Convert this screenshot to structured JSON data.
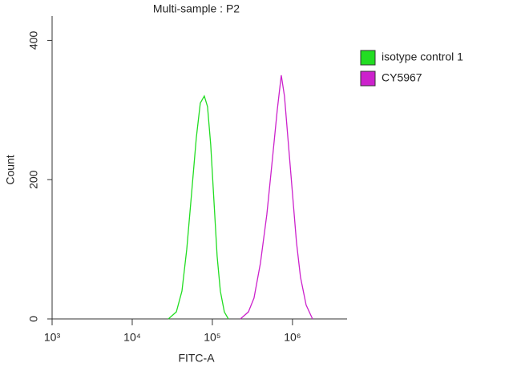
{
  "chart_data": {
    "type": "line",
    "title": "Multi-sample : P2",
    "x_label": "FITC-A",
    "y_label": "Count",
    "log_x": true,
    "xlim": [
      1000,
      4800000
    ],
    "ylim": [
      0,
      435
    ],
    "xticks": [
      {
        "value": 1000,
        "label": "10³"
      },
      {
        "value": 10000,
        "label": "10⁴"
      },
      {
        "value": 100000,
        "label": "10⁵"
      },
      {
        "value": 1000000,
        "label": "10⁶"
      }
    ],
    "yticks": [
      0,
      200,
      400
    ],
    "legend": "right",
    "series": [
      {
        "name": "isotype control 1",
        "color": "#22dd22",
        "x": [
          28200,
          35500,
          41700,
          47900,
          55000,
          63100,
          70800,
          79400,
          87100,
          95500,
          104700,
          114800,
          125900,
          141300,
          158500
        ],
        "values": [
          0,
          10,
          40,
          100,
          180,
          260,
          310,
          320,
          305,
          250,
          170,
          90,
          40,
          10,
          0
        ]
      },
      {
        "name": "CY5967",
        "color": "#cc22cc",
        "x": [
          223900,
          281800,
          331100,
          398100,
          478600,
          562300,
          645700,
          724400,
          794300,
          891300,
          1000000,
          1122000,
          1259000,
          1479000,
          1778000
        ],
        "values": [
          0,
          10,
          30,
          80,
          150,
          230,
          300,
          350,
          320,
          250,
          180,
          110,
          60,
          20,
          0
        ]
      }
    ]
  }
}
